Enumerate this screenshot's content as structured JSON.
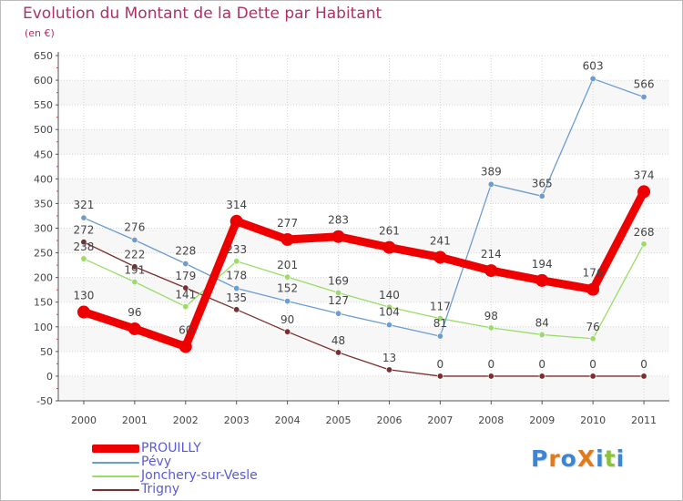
{
  "chart_data": {
    "type": "line",
    "title": "Evolution du Montant de la Dette par Habitant",
    "subtitle": "(en €)",
    "x": [
      "2000",
      "2001",
      "2002",
      "2003",
      "2004",
      "2005",
      "2006",
      "2007",
      "2008",
      "2009",
      "2010",
      "2011"
    ],
    "ylim": [
      -50,
      650
    ],
    "yticks": [
      "-50",
      "0",
      "50",
      "100",
      "150",
      "200",
      "250",
      "300",
      "350",
      "400",
      "450",
      "500",
      "550",
      "600",
      "650"
    ],
    "grid": true,
    "legend_position": "bottom-left",
    "series": [
      {
        "name": "PROUILLY",
        "color": "#ee0000",
        "values": [
          130,
          96,
          60,
          314,
          277,
          283,
          261,
          241,
          214,
          194,
          176,
          374
        ],
        "labels": [
          "130",
          "96",
          "60",
          "314",
          "277",
          "283",
          "261",
          "241",
          "214",
          "194",
          "176",
          "374"
        ]
      },
      {
        "name": "Pévy",
        "color": "#6c9dd0",
        "values": [
          321,
          276,
          228,
          178,
          152,
          127,
          104,
          81,
          389,
          365,
          603,
          566
        ],
        "labels": [
          "321",
          "276",
          "228",
          "178",
          "152",
          "127",
          "104",
          "81",
          "389",
          "365",
          "603",
          "566"
        ]
      },
      {
        "name": "Jonchery-sur-Vesle",
        "color": "#99dd66",
        "values": [
          238,
          191,
          141,
          233,
          201,
          169,
          140,
          117,
          98,
          84,
          76,
          268
        ],
        "labels": [
          "238",
          "191",
          "141",
          "233",
          "201",
          "169",
          "140",
          "117",
          "98",
          "84",
          "76",
          "268"
        ]
      },
      {
        "name": "Trigny",
        "color": "#7a2e2e",
        "values": [
          272,
          222,
          179,
          135,
          90,
          48,
          13,
          0,
          0,
          0,
          0,
          0
        ],
        "labels": [
          "272",
          "222",
          "179",
          "135",
          "90",
          "48",
          "13",
          "0",
          "0",
          "0",
          "0",
          "0"
        ]
      }
    ]
  },
  "logo": {
    "text": "ProXiti"
  }
}
